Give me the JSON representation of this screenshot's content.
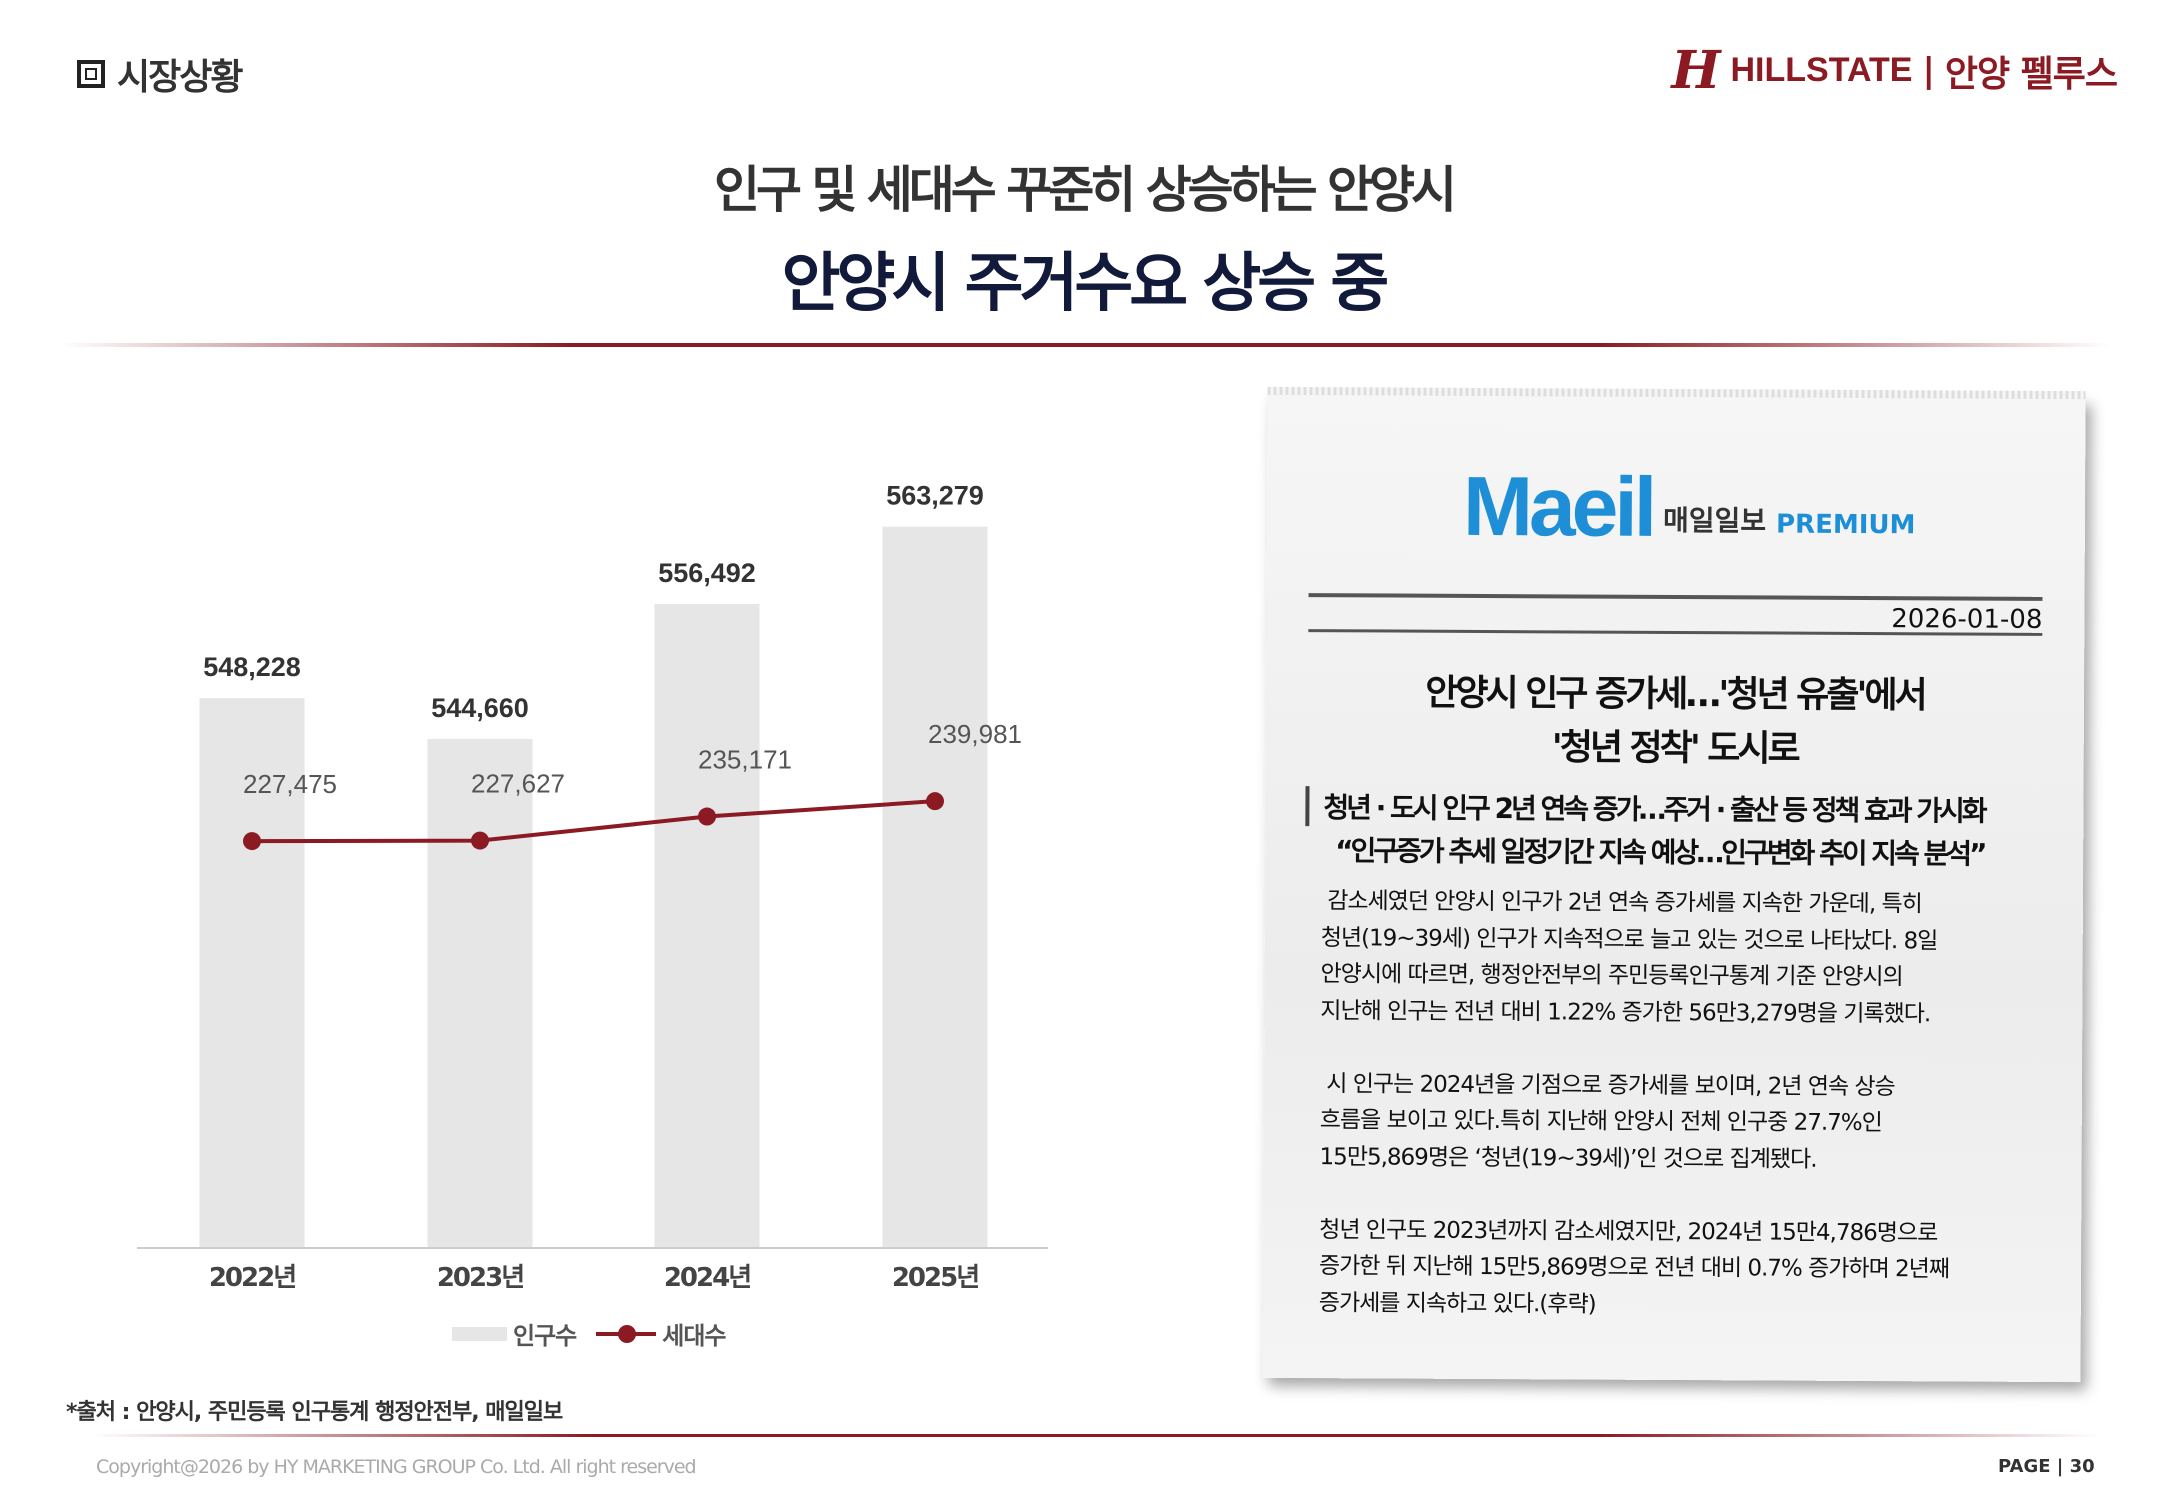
{
  "header": {
    "section": "시장상황",
    "brand_mark": "H",
    "brand_name": "HILLSTATE",
    "brand_sep": "|",
    "project": "안양 펠루스"
  },
  "title": {
    "line1": "인구 및 세대수 꾸준히 상승하는 안양시",
    "line2": "안양시 주거수요 상승 중"
  },
  "chart_data": {
    "type": "bar+line",
    "categories": [
      "2022년",
      "2023년",
      "2024년",
      "2025년"
    ],
    "series": [
      {
        "name": "인구수",
        "type": "bar",
        "values": [
          548228,
          544660,
          556492,
          563279
        ],
        "labels": [
          "548,228",
          "544,660",
          "556,492",
          "563,279"
        ],
        "color": "#e6e6e6",
        "ylim": [
          500000,
          570000
        ]
      },
      {
        "name": "세대수",
        "type": "line",
        "values": [
          227475,
          227627,
          235171,
          239981
        ],
        "labels": [
          "227,475",
          "227,627",
          "235,171",
          "239,981"
        ],
        "color": "#8b1a22",
        "ylim": [
          100000,
          350000
        ]
      }
    ],
    "grid": false,
    "legend": "bottom"
  },
  "source": "*출처 : 안양시, 주민등록 인구통계 행정안전부, 매일일보",
  "footer": {
    "copyright": "Copyright@2026 by HY MARKETING GROUP Co. Ltd. All right reserved",
    "page": "PAGE | 30"
  },
  "article": {
    "logo": "Maeil",
    "logo_kr": "매일일보",
    "logo_premium": "PREMIUM",
    "date": "2026-01-08",
    "headline": [
      "안양시 인구 증가세…'청년 유출'에서",
      "'청년 정착' 도시로"
    ],
    "subheads": [
      "청년 · 도시 인구 2년 연속 증가…주거 · 출산 등 정책 효과 가시화",
      "“인구증가 추세 일정기간 지속 예상…인구변화 추이 지속 분석”"
    ],
    "body": " 감소세였던 안양시 인구가 2년 연속 증가세를 지속한 가운데, 특히\n청년(19~39세) 인구가 지속적으로 늘고 있는 것으로 나타났다. 8일\n안양시에 따르면, 행정안전부의 주민등록인구통계 기준 안양시의\n지난해 인구는 전년 대비 1.22% 증가한 56만3,279명을 기록했다.\n\n 시 인구는 2024년을 기점으로 증가세를 보이며, 2년 연속 상승\n흐름을 보이고 있다.특히 지난해 안양시 전체 인구중 27.7%인\n15만5,869명은 ‘청년(19~39세)’인 것으로 집계됐다.\n\n청년 인구도 2023년까지 감소세였지만, 2024년 15만4,786명으로\n증가한 뒤 지난해 15만5,869명으로 전년 대비 0.7% 증가하며 2년째\n증가세를 지속하고 있다.(후략)"
  }
}
